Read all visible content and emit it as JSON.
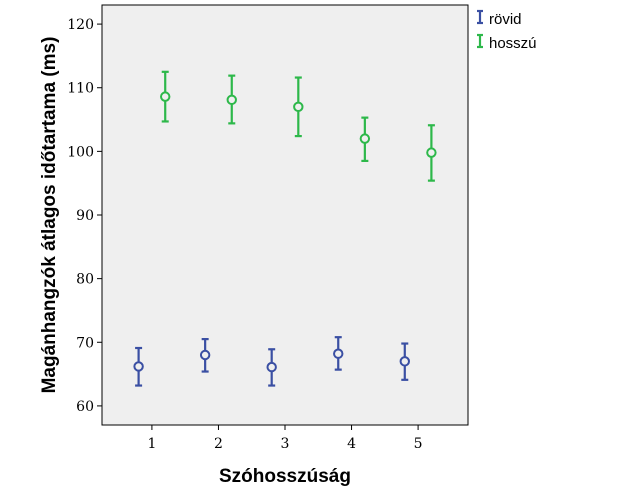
{
  "chart_data": {
    "type": "scatter",
    "title": "",
    "xlabel": "Szóhosszúság",
    "ylabel": "Magánhangzók átlagos időtartama (ms)",
    "xlim": [
      0.25,
      5.75
    ],
    "ylim": [
      57,
      123
    ],
    "xticks": [
      "1",
      "2",
      "3",
      "4",
      "5"
    ],
    "yticks": [
      "60",
      "70",
      "80",
      "90",
      "100",
      "110",
      "120"
    ],
    "grid": false,
    "legend_position": "top-right, outside plot",
    "series": [
      {
        "name": "rövid",
        "color": "#3a4fa3",
        "x": [
          1,
          2,
          3,
          4,
          5
        ],
        "y": [
          66.2,
          68.0,
          66.1,
          68.2,
          67.0
        ],
        "err_low": [
          63.2,
          65.4,
          63.2,
          65.7,
          64.1
        ],
        "err_high": [
          69.1,
          70.5,
          68.9,
          70.8,
          69.8
        ]
      },
      {
        "name": "hosszú",
        "color": "#2db84a",
        "x": [
          1,
          2,
          3,
          4,
          5
        ],
        "y": [
          108.6,
          108.1,
          107.0,
          102.0,
          99.8
        ],
        "err_low": [
          104.7,
          104.4,
          102.4,
          98.5,
          95.4
        ],
        "err_high": [
          112.5,
          111.9,
          111.6,
          105.3,
          104.1
        ]
      }
    ]
  }
}
